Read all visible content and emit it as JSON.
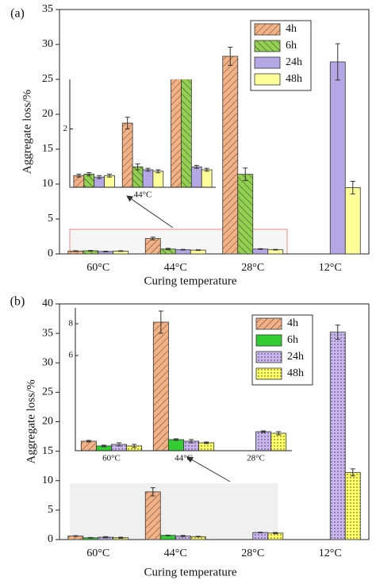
{
  "chart_data": [
    {
      "type": "bar",
      "panel_label": "(a)",
      "xlabel": "Curing temperature",
      "ylabel": "Aggregate loss/%",
      "categories": [
        "60°C",
        "44°C",
        "28°C",
        "12°C"
      ],
      "ylim": [
        0,
        35
      ],
      "yticks": [
        0,
        5,
        10,
        15,
        20,
        25,
        30,
        35
      ],
      "legend": "upper right",
      "series": [
        {
          "name": "4h",
          "color": "#f4b183",
          "hatch": "forward",
          "values": [
            0.4,
            2.2,
            28.3,
            null
          ],
          "errors": [
            0.05,
            0.2,
            1.3,
            null
          ]
        },
        {
          "name": "6h",
          "color": "#92d050",
          "hatch": "back",
          "values": [
            0.45,
            0.7,
            11.4,
            null
          ],
          "errors": [
            0.05,
            0.1,
            0.9,
            null
          ]
        },
        {
          "name": "24h",
          "color": "#b4a7e5",
          "hatch": null,
          "values": [
            0.35,
            0.6,
            0.7,
            27.5
          ],
          "errors": [
            0.05,
            0.05,
            0.05,
            2.6
          ]
        },
        {
          "name": "48h",
          "color": "#ffff99",
          "hatch": null,
          "values": [
            0.4,
            0.55,
            0.6,
            9.5
          ],
          "errors": [
            0.05,
            0.05,
            0.05,
            0.9
          ]
        }
      ],
      "inset": {
        "categories": [
          null,
          "44°C",
          null
        ],
        "ylim": [
          0,
          3.7
        ],
        "yticks": [
          2
        ]
      }
    },
    {
      "type": "bar",
      "panel_label": "(b)",
      "xlabel": "Curing temperature",
      "ylabel": "Aggregate loss/%",
      "categories": [
        "60°C",
        "44°C",
        "28°C",
        "12°C"
      ],
      "ylim": [
        0,
        40
      ],
      "yticks": [
        0,
        5,
        10,
        15,
        20,
        25,
        30,
        35,
        40
      ],
      "legend": "upper right",
      "series": [
        {
          "name": "4h",
          "color": "#f4b183",
          "hatch": "forward",
          "values": [
            0.6,
            8.1,
            null,
            null
          ],
          "errors": [
            0.05,
            0.7,
            null,
            null
          ]
        },
        {
          "name": "6h",
          "color": "#33cc33",
          "hatch": null,
          "values": [
            0.3,
            0.7,
            null,
            null
          ],
          "errors": [
            0.05,
            0.05,
            null,
            null
          ]
        },
        {
          "name": "24h",
          "color": "#c9b6f0",
          "hatch": "dots",
          "values": [
            0.4,
            0.6,
            1.2,
            35.2
          ],
          "errors": [
            0.1,
            0.1,
            0.05,
            1.2
          ]
        },
        {
          "name": "48h",
          "color": "#ffff66",
          "hatch": "dots",
          "values": [
            0.3,
            0.5,
            1.1,
            11.4
          ],
          "errors": [
            0.1,
            0.05,
            0.1,
            0.6
          ]
        }
      ],
      "inset": {
        "categories": [
          "60°C",
          "44°C",
          "28°C"
        ],
        "ylim": [
          0,
          9
        ],
        "yticks": [
          6,
          8
        ]
      }
    }
  ]
}
